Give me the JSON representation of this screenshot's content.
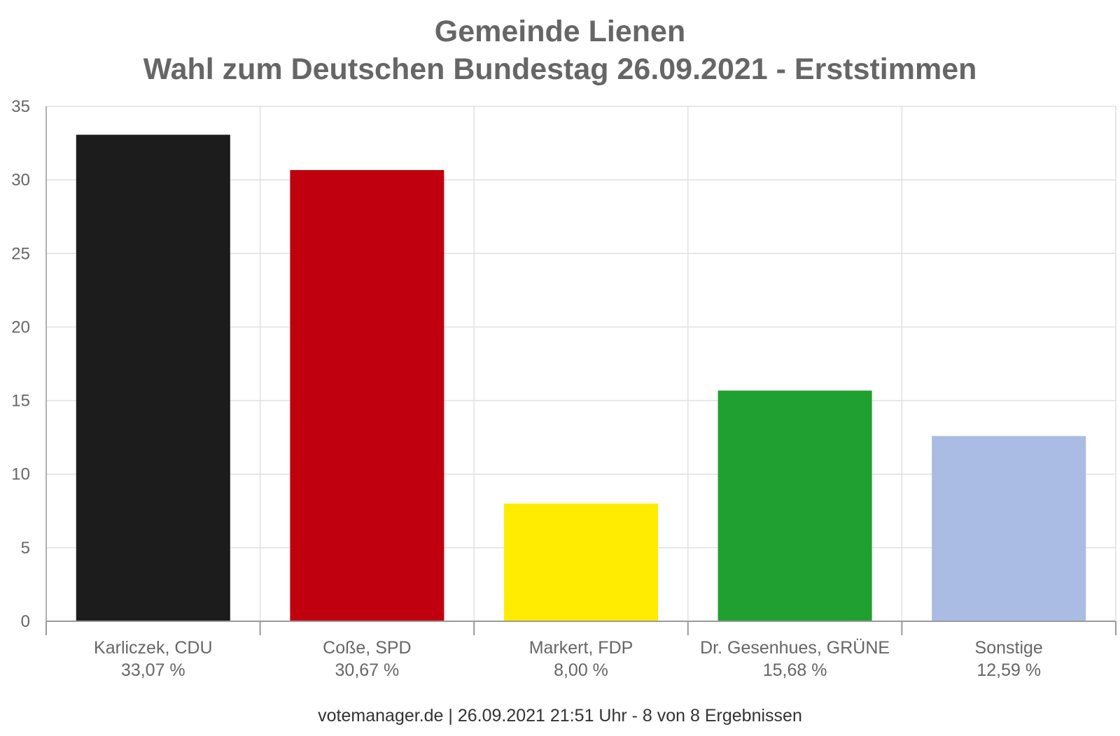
{
  "chart_data": {
    "type": "bar",
    "title": "Gemeinde Lienen",
    "subtitle": "Wahl zum Deutschen Bundestag 26.09.2021  - Erststimmen",
    "categories": [
      "Karliczek, CDU",
      "Coße, SPD",
      "Markert, FDP",
      "Dr. Gesenhues, GRÜNE",
      "Sonstige"
    ],
    "value_labels": [
      "33,07 %",
      "30,67 %",
      "8,00 %",
      "15,68 %",
      "12,59 %"
    ],
    "values": [
      33.07,
      30.67,
      8.0,
      15.68,
      12.59
    ],
    "colors": [
      "#1c1c1c",
      "#c0000f",
      "#ffec00",
      "#20a030",
      "#aabce3"
    ],
    "ylim": [
      0,
      35
    ],
    "yticks": [
      0,
      5,
      10,
      15,
      20,
      25,
      30,
      35
    ],
    "grid": true,
    "legend": "none",
    "xlabel": "",
    "ylabel": ""
  },
  "credit": "votemanager.de | 26.09.2021 21:51 Uhr - 8 von 8 Ergebnissen"
}
